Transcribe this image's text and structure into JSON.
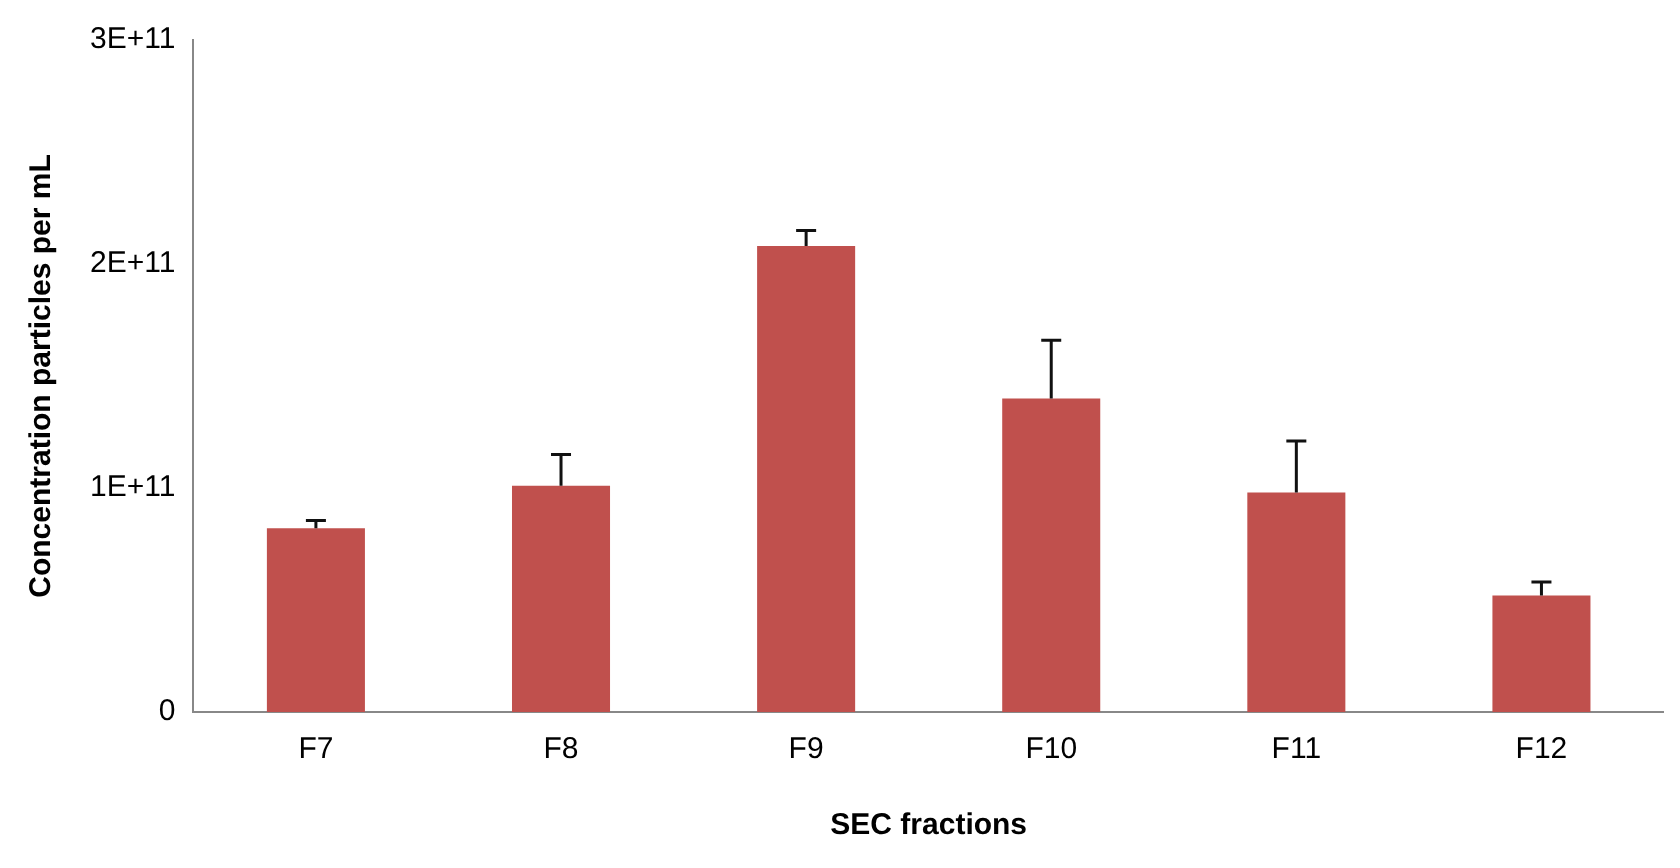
{
  "chart_data": {
    "type": "bar",
    "xlabel": "SEC fractions",
    "ylabel": "Concentration particles per mL",
    "categories": [
      "F7",
      "F8",
      "F9",
      "F10",
      "F11",
      "F12"
    ],
    "values": [
      82000000000,
      101000000000,
      208000000000,
      140000000000,
      98000000000,
      52000000000
    ],
    "errors": [
      [
        82000000000,
        85500000000
      ],
      [
        101000000000,
        115000000000
      ],
      [
        208000000000,
        215000000000
      ],
      [
        140000000000,
        166000000000
      ],
      [
        98000000000,
        121000000000
      ],
      [
        52000000000,
        58000000000
      ]
    ],
    "color": "#c0504d",
    "ylim": [
      0,
      300000000000
    ],
    "yticks": [
      0,
      {
        "value": 100000000000,
        "label": "1E+11"
      },
      {
        "value": 200000000000,
        "label": "2E+11"
      },
      {
        "value": 300000000000,
        "label": "3E+11"
      }
    ],
    "grid": false,
    "legend": false
  }
}
